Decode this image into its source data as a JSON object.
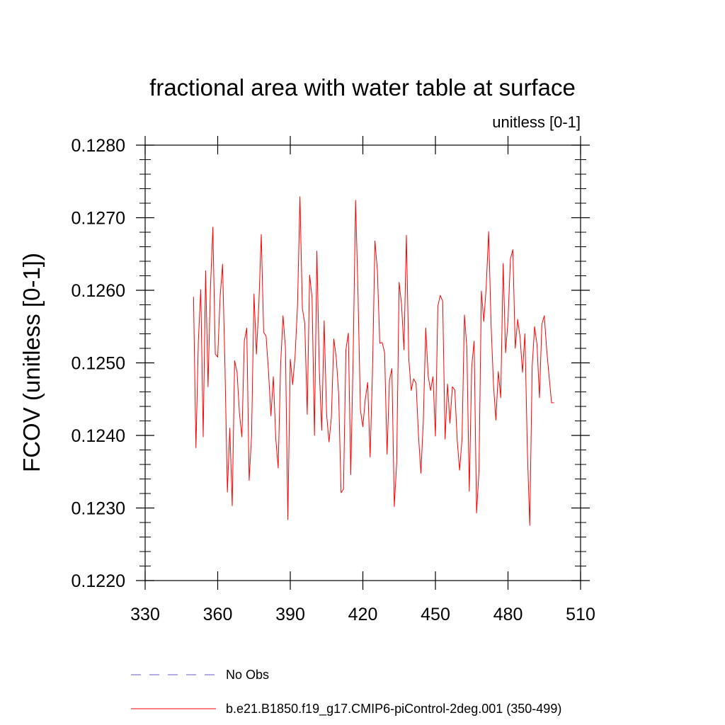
{
  "chart_data": {
    "type": "line",
    "title": "fractional area with water table at surface",
    "subtitle": "unitless [0-1]",
    "ylabel": "FCOV  (unitless [0-1])",
    "xlabel": "",
    "xlim": [
      330,
      510
    ],
    "ylim": [
      0.122,
      0.128
    ],
    "xticks": [
      330,
      360,
      390,
      420,
      450,
      480,
      510
    ],
    "yticks": [
      0.122,
      0.123,
      0.124,
      0.125,
      0.126,
      0.127,
      0.128
    ],
    "xtick_labels": [
      "330",
      "360",
      "390",
      "420",
      "450",
      "480",
      "510"
    ],
    "ytick_labels": [
      "0.1220",
      "0.1230",
      "0.1240",
      "0.1250",
      "0.1260",
      "0.1270",
      "0.1280"
    ],
    "grid": false,
    "legend_position": "bottom",
    "series": [
      {
        "name": "No Obs",
        "color": "#6a5acd",
        "dash": "dashed",
        "values": []
      },
      {
        "name": "b.e21.B1850.f19_g17.CMIP6-piControl-2deg.001 (350-499)",
        "color": "#ff0000",
        "dash": "solid",
        "x_start": 350,
        "x_step": 1,
        "values": [
          0.12591,
          0.12383,
          0.1253,
          0.12601,
          0.12398,
          0.12627,
          0.12467,
          0.12603,
          0.12687,
          0.12512,
          0.12508,
          0.12591,
          0.12636,
          0.12495,
          0.12322,
          0.1241,
          0.12303,
          0.12503,
          0.12487,
          0.1243,
          0.12398,
          0.1253,
          0.12548,
          0.12338,
          0.124,
          0.12595,
          0.12512,
          0.1258,
          0.12677,
          0.12542,
          0.12537,
          0.12488,
          0.12427,
          0.12481,
          0.12396,
          0.12355,
          0.12497,
          0.12565,
          0.12521,
          0.12284,
          0.12505,
          0.1247,
          0.1251,
          0.1258,
          0.12729,
          0.12575,
          0.12554,
          0.12429,
          0.12621,
          0.1259,
          0.124,
          0.12654,
          0.1249,
          0.12407,
          0.12558,
          0.1243,
          0.12391,
          0.12425,
          0.12533,
          0.12507,
          0.12457,
          0.12321,
          0.12326,
          0.12518,
          0.12541,
          0.12346,
          0.1251,
          0.12724,
          0.12595,
          0.12435,
          0.12412,
          0.1245,
          0.12473,
          0.1237,
          0.1249,
          0.12668,
          0.12628,
          0.12527,
          0.12528,
          0.12514,
          0.12374,
          0.12476,
          0.12492,
          0.12302,
          0.12363,
          0.12611,
          0.1258,
          0.12518,
          0.12676,
          0.12505,
          0.12462,
          0.12478,
          0.12472,
          0.124,
          0.12348,
          0.1242,
          0.12548,
          0.12482,
          0.12462,
          0.12481,
          0.12399,
          0.12578,
          0.12593,
          0.12585,
          0.12395,
          0.12471,
          0.12417,
          0.12467,
          0.12463,
          0.12394,
          0.12352,
          0.12395,
          0.12566,
          0.1252,
          0.12323,
          0.12495,
          0.1253,
          0.12293,
          0.1235,
          0.12599,
          0.12557,
          0.12605,
          0.12681,
          0.12554,
          0.1247,
          0.12421,
          0.12488,
          0.12452,
          0.12637,
          0.12514,
          0.12558,
          0.12643,
          0.12656,
          0.1252,
          0.1256,
          0.12535,
          0.12487,
          0.1254,
          0.1238,
          0.12276,
          0.12495,
          0.1255,
          0.12525,
          0.12452,
          0.12553,
          0.12565,
          0.12518,
          0.12481,
          0.12445,
          0.12445
        ]
      }
    ]
  }
}
